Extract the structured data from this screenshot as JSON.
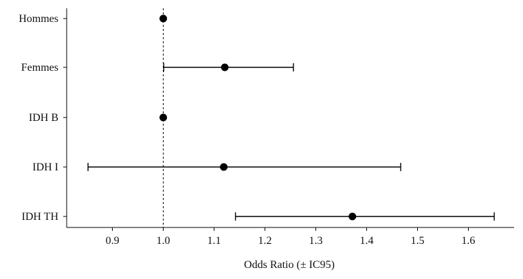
{
  "chart_data": {
    "type": "scatter",
    "subtype": "forest-plot",
    "title": "",
    "xlabel": "Odds Ratio (± IC95)",
    "ylabel": "",
    "xlim": [
      0.81,
      1.69
    ],
    "xticks": [
      0.9,
      1.0,
      1.1,
      1.2,
      1.3,
      1.4,
      1.5,
      1.6
    ],
    "xtick_labels": [
      "0.9",
      "1.0",
      "1.1",
      "1.2",
      "1.3",
      "1.4",
      "1.5",
      "1.6"
    ],
    "reference_line": {
      "x": 1.0,
      "style": "dashed"
    },
    "categories": [
      "Hommes",
      "Femmes",
      "IDH B",
      "IDH I",
      "IDH TH"
    ],
    "points": [
      {
        "label": "Hommes",
        "or": 1.0,
        "ci_low": null,
        "ci_high": null
      },
      {
        "label": "Femmes",
        "or": 1.121,
        "ci_low": 1.001,
        "ci_high": 1.256
      },
      {
        "label": "IDH B",
        "or": 1.0,
        "ci_low": null,
        "ci_high": null
      },
      {
        "label": "IDH I",
        "or": 1.119,
        "ci_low": 0.852,
        "ci_high": 1.467
      },
      {
        "label": "IDH TH",
        "or": 1.372,
        "ci_low": 1.142,
        "ci_high": 1.651
      }
    ],
    "grid": false,
    "colors": {
      "marker": "#000000",
      "line": "#000000"
    }
  }
}
